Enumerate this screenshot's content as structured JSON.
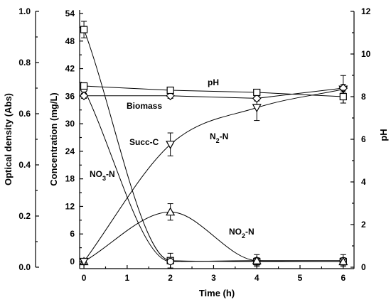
{
  "chart_data": {
    "type": "line",
    "xlabel": "Time (h)",
    "x_ticks": [
      "0",
      "1",
      "2",
      "3",
      "4",
      "5",
      "6"
    ],
    "xlim": [
      -0.1,
      6.25
    ],
    "y_axes": [
      {
        "id": "od",
        "label": "Optical density (Abs)",
        "ylim": [
          0,
          1.0
        ],
        "ticks": [
          "0.0",
          "0.2",
          "0.4",
          "0.6",
          "0.8",
          "1.0"
        ]
      },
      {
        "id": "conc",
        "label": "Concentration (mg/L)",
        "ylim": [
          -1.7,
          54
        ],
        "ticks": [
          "0",
          "6",
          "12",
          "18",
          "24",
          "30",
          "36",
          "42",
          "48",
          "54"
        ]
      },
      {
        "id": "ph",
        "label": "pH",
        "ylim": [
          0,
          12
        ],
        "ticks": [
          "0",
          "2",
          "4",
          "6",
          "8",
          "10",
          "12"
        ]
      }
    ],
    "series": [
      {
        "name": "Succ-C",
        "axis": "conc",
        "marker": "square",
        "points": [
          {
            "x": 0,
            "y": 50.5,
            "err": 1.8
          },
          {
            "x": 2,
            "y": 0.2,
            "err": 1.6
          },
          {
            "x": 4,
            "y": 0,
            "err": 0.8
          },
          {
            "x": 6,
            "y": 0,
            "err": 0.8
          }
        ]
      },
      {
        "name": "NO3-N",
        "axis": "conc",
        "marker": "circle",
        "points": [
          {
            "x": 0,
            "y": 37.5,
            "err": 1
          },
          {
            "x": 2,
            "y": 0,
            "err": 0.5
          },
          {
            "x": 4,
            "y": 0.2,
            "err": 1.3
          },
          {
            "x": 6,
            "y": 0.2,
            "err": 1.3
          }
        ]
      },
      {
        "name": "NO2-N",
        "axis": "conc",
        "marker": "triangle-up",
        "points": [
          {
            "x": 0,
            "y": 0,
            "err": 0.5
          },
          {
            "x": 2,
            "y": 10.8,
            "err": 1.8
          },
          {
            "x": 4,
            "y": 0.2,
            "err": 0.5
          },
          {
            "x": 6,
            "y": 0,
            "err": 0.5
          }
        ]
      },
      {
        "name": "N2-N",
        "axis": "conc",
        "marker": "triangle-down",
        "points": [
          {
            "x": 0,
            "y": 0,
            "err": 0.5
          },
          {
            "x": 2,
            "y": 25.5,
            "err": 2.5
          },
          {
            "x": 4,
            "y": 33.5,
            "err": 2.8
          },
          {
            "x": 6,
            "y": 37.5,
            "err": 3
          }
        ]
      },
      {
        "name": "Biomass",
        "axis": "od",
        "marker": "diamond",
        "points": [
          {
            "x": 0,
            "y": 0.67,
            "err": 0.01
          },
          {
            "x": 2,
            "y": 0.67,
            "err": 0.01
          },
          {
            "x": 4,
            "y": 0.66,
            "err": 0.01
          },
          {
            "x": 6,
            "y": 0.7,
            "err": 0.015
          }
        ]
      },
      {
        "name": "pH",
        "axis": "ph",
        "marker": "square",
        "points": [
          {
            "x": 0,
            "y": 8.5,
            "err": 0.1
          },
          {
            "x": 2,
            "y": 8.3,
            "err": 0.1
          },
          {
            "x": 4,
            "y": 8.2,
            "err": 0.1
          },
          {
            "x": 6,
            "y": 8.0,
            "err": 0.3
          }
        ]
      }
    ],
    "annotations": [
      {
        "id": "ph",
        "text": "pH"
      },
      {
        "id": "biomass",
        "text": "Biomass"
      },
      {
        "id": "succ",
        "text": "Succ-C"
      },
      {
        "id": "n2",
        "text": "N",
        "sub": "2",
        "tail": "-N"
      },
      {
        "id": "no3",
        "text": "NO",
        "sub": "3",
        "tail": "-N"
      },
      {
        "id": "no2",
        "text": "NO",
        "sub": "2",
        "tail": "-N"
      }
    ]
  }
}
